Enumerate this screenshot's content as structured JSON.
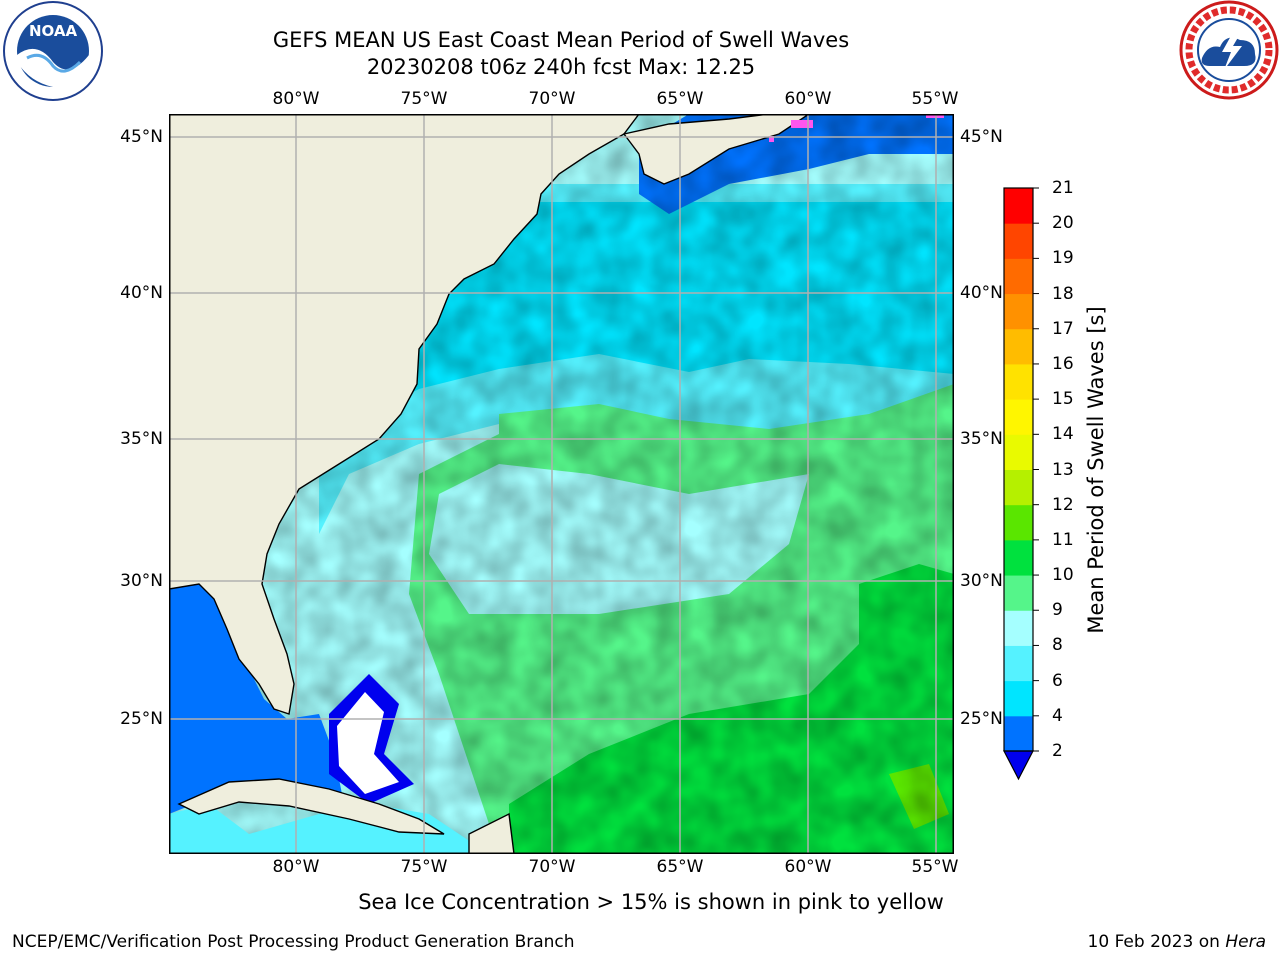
{
  "title": {
    "line1": "GEFS MEAN US East Coast Mean Period of Swell Waves",
    "line2": "20230208 t06z 240h fcst   Max: 12.25"
  },
  "map": {
    "lon_labels": [
      "80°W",
      "75°W",
      "70°W",
      "65°W",
      "60°W",
      "55°W"
    ],
    "lat_labels": [
      "45°N",
      "40°N",
      "35°N",
      "30°N",
      "25°N"
    ],
    "land_color": "#efeedd",
    "grid_color": "#b0b0b0"
  },
  "colorbar": {
    "label": "Mean Period of Swell Waves [s]",
    "ticks": [
      "2",
      "4",
      "6",
      "8",
      "9",
      "10",
      "11",
      "12",
      "13",
      "14",
      "15",
      "16",
      "17",
      "18",
      "19",
      "20",
      "21"
    ],
    "colors": [
      "#0000ee",
      "#0073ff",
      "#00e5ff",
      "#55f2ff",
      "#a5ffff",
      "#55f58a",
      "#00e13e",
      "#5ae600",
      "#b5f000",
      "#e9fa00",
      "#fff600",
      "#ffe200",
      "#ffbc00",
      "#ff9100",
      "#ff6b00",
      "#ff4500",
      "#ff0000"
    ]
  },
  "footnote": "Sea Ice Concentration > 15% is shown in pink to yellow",
  "footer": {
    "left": "NCEP/EMC/Verification Post Processing Product Generation Branch",
    "right_prefix": "10 Feb 2023 on ",
    "right_italic": "Hera"
  },
  "logos": {
    "noaa_text": "NOAA",
    "nws_text": "NATIONAL WEATHER SERVICE"
  }
}
